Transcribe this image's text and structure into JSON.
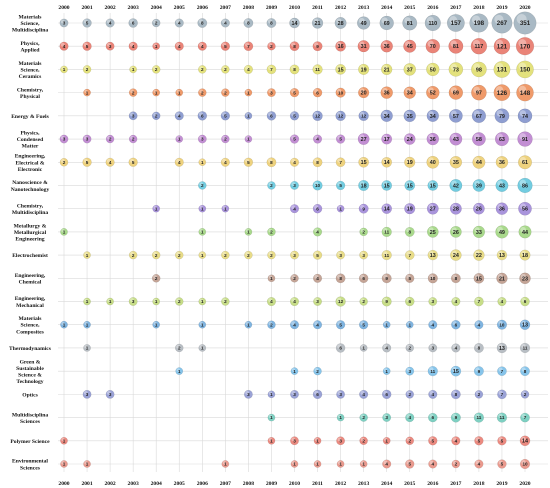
{
  "chart_data": {
    "type": "scatter",
    "title": "",
    "xlabel": "",
    "ylabel": "",
    "years": [
      "2000",
      "2001",
      "2002",
      "2003",
      "2004",
      "2005",
      "2006",
      "2007",
      "2008",
      "2009",
      "2010",
      "2011",
      "2012",
      "2013",
      "2014",
      "2015",
      "2016",
      "2017",
      "2018",
      "2019",
      "2020"
    ],
    "categories": [
      {
        "label": "Materials Science, Multidisciplina",
        "color": "#a9b9c4",
        "values": [
          3,
          5,
          4,
          6,
          2,
          4,
          8,
          4,
          8,
          8,
          14,
          21,
          28,
          49,
          69,
          81,
          110,
          157,
          198,
          267,
          351
        ]
      },
      {
        "label": "Physics, Applied",
        "color": "#ea8478",
        "values": [
          4,
          5,
          3,
          4,
          1,
          4,
          4,
          5,
          7,
          2,
          8,
          9,
          16,
          31,
          36,
          45,
          70,
          81,
          117,
          121,
          170
        ]
      },
      {
        "label": "Materials Science, Ceramics",
        "color": "#e3e17c",
        "values": [
          1,
          2,
          null,
          1,
          2,
          null,
          2,
          2,
          4,
          7,
          8,
          11,
          15,
          19,
          21,
          37,
          50,
          73,
          98,
          131,
          150
        ]
      },
      {
        "label": "Chemistry, Physical",
        "color": "#ef9a6a",
        "values": [
          null,
          1,
          null,
          2,
          1,
          1,
          2,
          2,
          1,
          3,
          5,
          6,
          10,
          20,
          36,
          34,
          52,
          69,
          97,
          126,
          148
        ]
      },
      {
        "label": "Energy & Fuels",
        "color": "#8f9ed1",
        "values": [
          null,
          null,
          null,
          3,
          2,
          4,
          6,
          5,
          1,
          6,
          5,
          12,
          12,
          12,
          34,
          35,
          34,
          57,
          67,
          79,
          74
        ]
      },
      {
        "label": "Physics, Condensed Matter",
        "color": "#c28ed3",
        "values": [
          3,
          3,
          2,
          2,
          null,
          1,
          3,
          2,
          1,
          null,
          5,
          4,
          5,
          27,
          17,
          24,
          36,
          43,
          58,
          63,
          91
        ]
      },
      {
        "label": "Engineering, Electrical & Electronic",
        "color": "#eed27e",
        "values": [
          2,
          5,
          4,
          5,
          null,
          4,
          1,
          4,
          5,
          8,
          4,
          8,
          7,
          15,
          14,
          19,
          40,
          35,
          44,
          36,
          61
        ]
      },
      {
        "label": "Nanoscience & Nanotechnology",
        "color": "#72cce0",
        "values": [
          null,
          null,
          null,
          null,
          null,
          null,
          2,
          null,
          null,
          2,
          3,
          10,
          5,
          18,
          15,
          15,
          15,
          42,
          39,
          43,
          86
        ]
      },
      {
        "label": "Chemistry, Multidisciplina",
        "color": "#a994dc",
        "values": [
          null,
          null,
          null,
          null,
          1,
          null,
          1,
          1,
          null,
          null,
          4,
          6,
          1,
          9,
          14,
          19,
          27,
          28,
          26,
          36,
          56
        ]
      },
      {
        "label": "Metallurgy & Metallurgical Engineering",
        "color": "#a9d98c",
        "values": [
          1,
          null,
          null,
          null,
          null,
          null,
          1,
          null,
          1,
          2,
          null,
          4,
          null,
          2,
          11,
          8,
          25,
          26,
          33,
          49,
          44
        ]
      },
      {
        "label": "Electrochemist",
        "color": "#e8dc88",
        "values": [
          null,
          1,
          null,
          2,
          2,
          2,
          1,
          2,
          2,
          2,
          3,
          5,
          3,
          3,
          11,
          7,
          13,
          24,
          22,
          13,
          18
        ]
      },
      {
        "label": "Engineering, Chemical",
        "color": "#c4a496",
        "values": [
          null,
          null,
          null,
          null,
          2,
          null,
          null,
          null,
          null,
          1,
          2,
          4,
          8,
          6,
          9,
          5,
          10,
          8,
          15,
          21,
          23
        ]
      },
      {
        "label": "Engineering, Mechanical",
        "color": "#c7dd88",
        "values": [
          null,
          1,
          1,
          3,
          1,
          2,
          1,
          2,
          null,
          4,
          4,
          3,
          12,
          2,
          9,
          6,
          3,
          4,
          7,
          4,
          6
        ]
      },
      {
        "label": "Materials Science, Composites",
        "color": "#7fb4e0",
        "values": [
          1,
          1,
          null,
          null,
          1,
          null,
          1,
          null,
          1,
          2,
          4,
          4,
          5,
          5,
          1,
          1,
          4,
          6,
          4,
          10,
          13
        ]
      },
      {
        "label": "Thermodynamics",
        "color": "#b8bec4",
        "values": [
          null,
          1,
          null,
          null,
          null,
          2,
          1,
          null,
          null,
          null,
          null,
          null,
          6,
          1,
          4,
          2,
          3,
          4,
          8,
          13,
          11
        ]
      },
      {
        "label": "Green & Sustainable Science & Technology",
        "color": "#86c4ea",
        "values": [
          null,
          null,
          null,
          null,
          null,
          1,
          null,
          null,
          null,
          null,
          1,
          2,
          null,
          null,
          1,
          3,
          11,
          15,
          9,
          7,
          8
        ]
      },
      {
        "label": "Optics",
        "color": "#9aa2d6",
        "values": [
          null,
          3,
          3,
          null,
          null,
          null,
          null,
          null,
          3,
          1,
          3,
          6,
          3,
          4,
          6,
          2,
          4,
          8,
          2,
          7,
          2
        ]
      },
      {
        "label": "Multidisciplina Sciences",
        "color": "#7ed0c2",
        "values": [
          null,
          null,
          null,
          null,
          null,
          null,
          null,
          null,
          null,
          1,
          null,
          null,
          1,
          2,
          3,
          4,
          6,
          9,
          11,
          11,
          7
        ]
      },
      {
        "label": "Polymer Science",
        "color": "#eb8a80",
        "values": [
          1,
          null,
          null,
          null,
          null,
          null,
          null,
          null,
          null,
          1,
          3,
          1,
          3,
          2,
          1,
          2,
          5,
          4,
          5,
          5,
          14
        ]
      },
      {
        "label": "Environmental Sciences",
        "color": "#ea9a8e",
        "values": [
          1,
          1,
          null,
          null,
          null,
          null,
          null,
          1,
          null,
          null,
          1,
          1,
          1,
          1,
          4,
          5,
          4,
          2,
          4,
          5,
          10
        ]
      }
    ]
  }
}
